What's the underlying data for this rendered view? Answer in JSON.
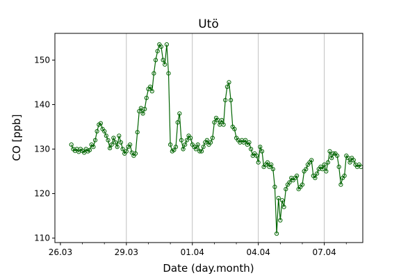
{
  "chart_data": {
    "type": "line",
    "title": "Utö",
    "xlabel": "Date (day.month)",
    "ylabel": "CO [ppb]",
    "xlim": [
      "2023-03-25T18:00",
      "2023-04-08T18:00"
    ],
    "ylim": [
      109,
      156
    ],
    "x_ticks": [
      {
        "date": "2023-03-26T00:00",
        "label": "26.03"
      },
      {
        "date": "2023-03-29T00:00",
        "label": "29.03"
      },
      {
        "date": "2023-04-01T00:00",
        "label": "01.04"
      },
      {
        "date": "2023-04-04T00:00",
        "label": "04.04"
      },
      {
        "date": "2023-04-07T00:00",
        "label": "07.04"
      }
    ],
    "minor_x_ticks": [
      "2023-03-27T00:00",
      "2023-03-28T00:00",
      "2023-03-30T00:00",
      "2023-03-31T00:00",
      "2023-04-02T00:00",
      "2023-04-03T00:00",
      "2023-04-05T00:00",
      "2023-04-06T00:00",
      "2023-04-08T00:00"
    ],
    "y_ticks": [
      110,
      120,
      130,
      140,
      150
    ],
    "vertical_gridlines": [
      "2023-03-29T00:00",
      "2023-04-01T00:00",
      "2023-04-04T00:00",
      "2023-04-07T00:00"
    ],
    "grid": "vertical at major ticks",
    "legend": "none",
    "series_color": "#006400",
    "marker": "open-circle",
    "series": [
      {
        "points": [
          [
            "2023-03-26T12:00",
            131
          ],
          [
            "2023-03-26T14:00",
            130
          ],
          [
            "2023-03-26T16:00",
            129.6
          ],
          [
            "2023-03-26T18:00",
            130
          ],
          [
            "2023-03-26T20:00",
            129.4
          ],
          [
            "2023-03-26T22:00",
            130
          ],
          [
            "2023-03-27T00:00",
            129.6
          ],
          [
            "2023-03-27T02:00",
            129.2
          ],
          [
            "2023-03-27T04:00",
            130
          ],
          [
            "2023-03-27T06:00",
            129.5
          ],
          [
            "2023-03-27T08:00",
            129.8
          ],
          [
            "2023-03-27T10:00",
            131
          ],
          [
            "2023-03-27T12:00",
            130.5
          ],
          [
            "2023-03-27T14:00",
            132
          ],
          [
            "2023-03-27T16:00",
            134
          ],
          [
            "2023-03-27T18:00",
            135.5
          ],
          [
            "2023-03-27T20:00",
            135.8
          ],
          [
            "2023-03-27T22:00",
            134.5
          ],
          [
            "2023-03-28T00:00",
            134
          ],
          [
            "2023-03-28T02:00",
            133
          ],
          [
            "2023-03-28T04:00",
            132
          ],
          [
            "2023-03-28T06:00",
            130.2
          ],
          [
            "2023-03-28T08:00",
            131
          ],
          [
            "2023-03-28T10:00",
            132.5
          ],
          [
            "2023-03-28T12:00",
            131.5
          ],
          [
            "2023-03-28T14:00",
            130.5
          ],
          [
            "2023-03-28T16:00",
            133
          ],
          [
            "2023-03-28T18:00",
            131.5
          ],
          [
            "2023-03-28T20:00",
            130
          ],
          [
            "2023-03-28T22:00",
            129
          ],
          [
            "2023-03-29T00:00",
            129.5
          ],
          [
            "2023-03-29T02:00",
            130.5
          ],
          [
            "2023-03-29T04:00",
            131
          ],
          [
            "2023-03-29T06:00",
            129.2
          ],
          [
            "2023-03-29T08:00",
            128.5
          ],
          [
            "2023-03-29T10:00",
            129
          ],
          [
            "2023-03-29T12:00",
            133.8
          ],
          [
            "2023-03-29T14:00",
            138.5
          ],
          [
            "2023-03-29T16:00",
            139.2
          ],
          [
            "2023-03-29T18:00",
            138
          ],
          [
            "2023-03-29T20:00",
            139
          ],
          [
            "2023-03-29T22:00",
            141.5
          ],
          [
            "2023-03-30T00:00",
            143.5
          ],
          [
            "2023-03-30T02:00",
            144
          ],
          [
            "2023-03-30T04:00",
            143
          ],
          [
            "2023-03-30T06:00",
            147
          ],
          [
            "2023-03-30T08:00",
            150
          ],
          [
            "2023-03-30T10:00",
            152
          ],
          [
            "2023-03-30T12:00",
            153.5
          ],
          [
            "2023-03-30T14:00",
            153
          ],
          [
            "2023-03-30T16:00",
            150
          ],
          [
            "2023-03-30T18:00",
            149
          ],
          [
            "2023-03-30T20:00",
            153.5
          ],
          [
            "2023-03-30T22:00",
            147
          ],
          [
            "2023-03-31T00:00",
            131
          ],
          [
            "2023-03-31T02:00",
            129.5
          ],
          [
            "2023-03-31T04:00",
            129.8
          ],
          [
            "2023-03-31T06:00",
            130.5
          ],
          [
            "2023-03-31T08:00",
            136
          ],
          [
            "2023-03-31T10:00",
            138
          ],
          [
            "2023-03-31T12:00",
            132
          ],
          [
            "2023-03-31T14:00",
            130
          ],
          [
            "2023-03-31T16:00",
            131
          ],
          [
            "2023-03-31T18:00",
            132
          ],
          [
            "2023-03-31T20:00",
            133
          ],
          [
            "2023-03-31T22:00",
            132.5
          ],
          [
            "2023-04-01T00:00",
            131
          ],
          [
            "2023-04-01T02:00",
            130.5
          ],
          [
            "2023-04-01T04:00",
            130
          ],
          [
            "2023-04-01T06:00",
            131
          ],
          [
            "2023-04-01T08:00",
            129.5
          ],
          [
            "2023-04-01T10:00",
            129.5
          ],
          [
            "2023-04-01T12:00",
            130.5
          ],
          [
            "2023-04-01T14:00",
            131.5
          ],
          [
            "2023-04-01T16:00",
            132
          ],
          [
            "2023-04-01T18:00",
            131
          ],
          [
            "2023-04-01T20:00",
            131.5
          ],
          [
            "2023-04-01T22:00",
            132.5
          ],
          [
            "2023-04-02T00:00",
            136
          ],
          [
            "2023-04-02T02:00",
            137
          ],
          [
            "2023-04-02T04:00",
            136.5
          ],
          [
            "2023-04-02T06:00",
            135.5
          ],
          [
            "2023-04-02T08:00",
            136.5
          ],
          [
            "2023-04-02T10:00",
            135.5
          ],
          [
            "2023-04-02T12:00",
            141
          ],
          [
            "2023-04-02T14:00",
            144
          ],
          [
            "2023-04-02T16:00",
            145
          ],
          [
            "2023-04-02T18:00",
            141
          ],
          [
            "2023-04-02T20:00",
            135
          ],
          [
            "2023-04-02T22:00",
            134.5
          ],
          [
            "2023-04-03T00:00",
            132.5
          ],
          [
            "2023-04-03T02:00",
            132
          ],
          [
            "2023-04-03T04:00",
            131.5
          ],
          [
            "2023-04-03T06:00",
            132
          ],
          [
            "2023-04-03T08:00",
            131.5
          ],
          [
            "2023-04-03T10:00",
            132
          ],
          [
            "2023-04-03T12:00",
            131
          ],
          [
            "2023-04-03T14:00",
            131.5
          ],
          [
            "2023-04-03T16:00",
            130
          ],
          [
            "2023-04-03T18:00",
            128.5
          ],
          [
            "2023-04-03T20:00",
            129
          ],
          [
            "2023-04-03T22:00",
            128.5
          ],
          [
            "2023-04-04T00:00",
            127
          ],
          [
            "2023-04-04T02:00",
            130.5
          ],
          [
            "2023-04-04T04:00",
            129.5
          ],
          [
            "2023-04-04T06:00",
            126
          ],
          [
            "2023-04-04T08:00",
            126.5
          ],
          [
            "2023-04-04T10:00",
            127
          ],
          [
            "2023-04-04T12:00",
            126
          ],
          [
            "2023-04-04T14:00",
            126.5
          ],
          [
            "2023-04-04T16:00",
            125.5
          ],
          [
            "2023-04-04T18:00",
            121.5
          ],
          [
            "2023-04-04T20:00",
            111
          ],
          [
            "2023-04-04T22:00",
            119
          ],
          [
            "2023-04-05T00:00",
            114
          ],
          [
            "2023-04-05T02:00",
            118.5
          ],
          [
            "2023-04-05T04:00",
            117
          ],
          [
            "2023-04-05T06:00",
            121
          ],
          [
            "2023-04-05T08:00",
            122
          ],
          [
            "2023-04-05T10:00",
            122.5
          ],
          [
            "2023-04-05T12:00",
            123.5
          ],
          [
            "2023-04-05T14:00",
            123
          ],
          [
            "2023-04-05T16:00",
            123.5
          ],
          [
            "2023-04-05T18:00",
            124
          ],
          [
            "2023-04-05T20:00",
            121
          ],
          [
            "2023-04-05T22:00",
            121.5
          ],
          [
            "2023-04-06T00:00",
            122
          ],
          [
            "2023-04-06T02:00",
            125
          ],
          [
            "2023-04-06T04:00",
            125.5
          ],
          [
            "2023-04-06T06:00",
            126.5
          ],
          [
            "2023-04-06T08:00",
            127
          ],
          [
            "2023-04-06T10:00",
            127.5
          ],
          [
            "2023-04-06T12:00",
            124
          ],
          [
            "2023-04-06T14:00",
            123.5
          ],
          [
            "2023-04-06T16:00",
            124.5
          ],
          [
            "2023-04-06T18:00",
            125.5
          ],
          [
            "2023-04-06T20:00",
            126
          ],
          [
            "2023-04-06T22:00",
            125.5
          ],
          [
            "2023-04-07T00:00",
            126.5
          ],
          [
            "2023-04-07T02:00",
            125
          ],
          [
            "2023-04-07T04:00",
            127
          ],
          [
            "2023-04-07T06:00",
            129.5
          ],
          [
            "2023-04-07T08:00",
            128
          ],
          [
            "2023-04-07T10:00",
            129
          ],
          [
            "2023-04-07T12:00",
            129
          ],
          [
            "2023-04-07T14:00",
            128.5
          ],
          [
            "2023-04-07T16:00",
            126
          ],
          [
            "2023-04-07T18:00",
            122
          ],
          [
            "2023-04-07T20:00",
            123.5
          ],
          [
            "2023-04-07T22:00",
            124
          ],
          [
            "2023-04-08T00:00",
            128.5
          ],
          [
            "2023-04-08T02:00",
            128
          ],
          [
            "2023-04-08T04:00",
            127
          ],
          [
            "2023-04-08T06:00",
            128
          ],
          [
            "2023-04-08T08:00",
            127.5
          ],
          [
            "2023-04-08T10:00",
            126.5
          ],
          [
            "2023-04-08T12:00",
            126
          ],
          [
            "2023-04-08T14:00",
            126.5
          ],
          [
            "2023-04-08T16:00",
            126
          ]
        ]
      }
    ]
  }
}
